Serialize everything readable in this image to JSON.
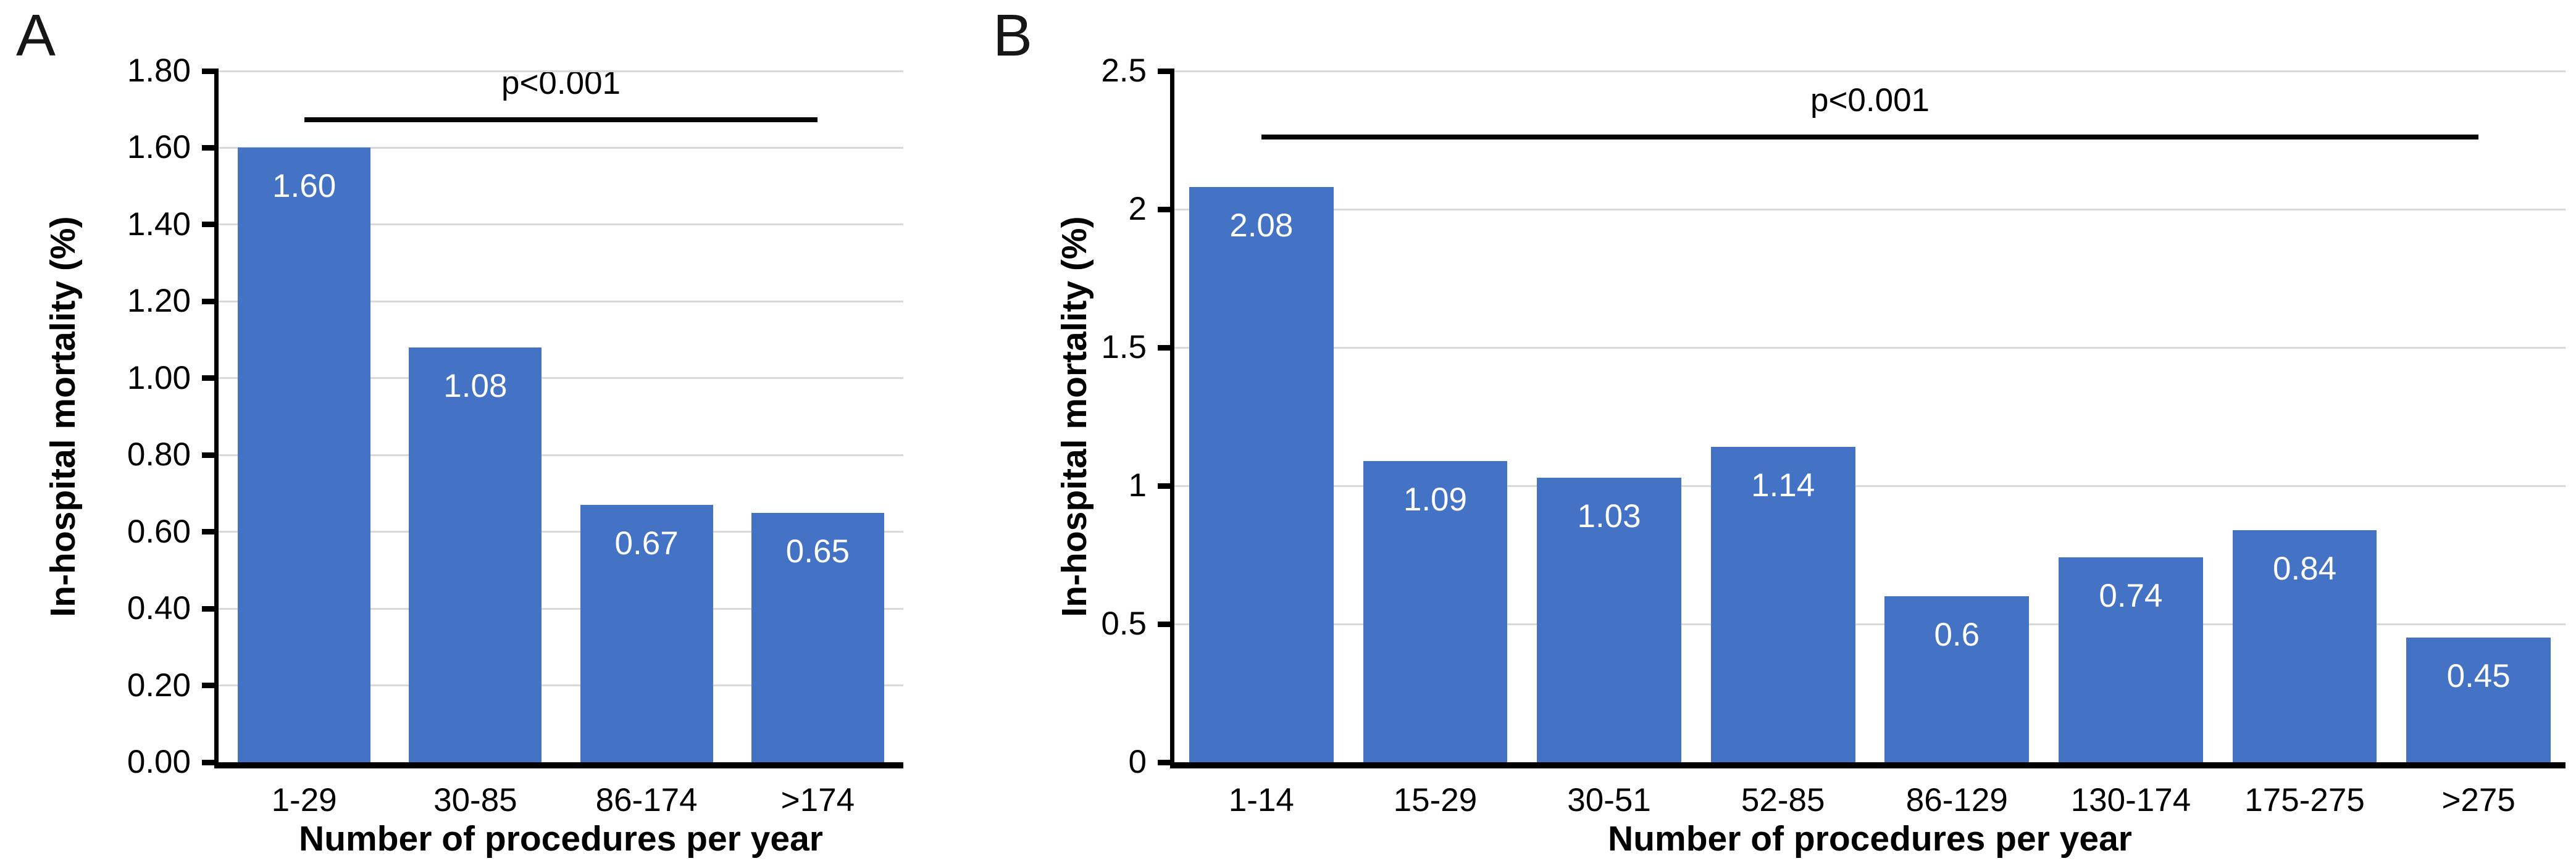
{
  "figure": {
    "description": "Two-panel bar chart of in-hospital mortality by annual procedure volume"
  },
  "chart_data": [
    {
      "type": "bar",
      "panel": "A",
      "categories": [
        "1-29",
        "30-85",
        "86-174",
        ">174"
      ],
      "values": [
        1.6,
        1.08,
        0.67,
        0.65
      ],
      "bar_value_labels": [
        "1.60",
        "1.08",
        "0.67",
        "0.65"
      ],
      "xlabel": "Number of procedures per year",
      "ylabel": "In-hospital mortality (%)",
      "ylim": [
        0,
        1.8
      ],
      "ytick_step": 0.2,
      "ytick_labels": [
        "0.00",
        "0.20",
        "0.40",
        "0.60",
        "0.80",
        "1.00",
        "1.20",
        "1.40",
        "1.60",
        "1.80"
      ],
      "grid": true,
      "legend": "none",
      "annotation": "p<0.001",
      "sig_line": {
        "y_value": 1.68,
        "from_frac": 0.125,
        "to_frac": 0.875
      },
      "bar_color": "#4472C4",
      "gridline_color": "#d9d9d9"
    },
    {
      "type": "bar",
      "panel": "B",
      "categories": [
        "1-14",
        "15-29",
        "30-51",
        "52-85",
        "86-129",
        "130-174",
        "175-275",
        ">275"
      ],
      "values": [
        2.08,
        1.09,
        1.03,
        1.14,
        0.6,
        0.74,
        0.84,
        0.45
      ],
      "bar_value_labels": [
        "2.08",
        "1.09",
        "1.03",
        "1.14",
        "0.6",
        "0.74",
        "0.84",
        "0.45"
      ],
      "xlabel": "Number of procedures per year",
      "ylabel": "In-hospital mortality (%)",
      "ylim": [
        0,
        2.5
      ],
      "ytick_step": 0.5,
      "ytick_labels": [
        "0",
        "0.5",
        "1",
        "1.5",
        "2",
        "2.5"
      ],
      "grid": true,
      "legend": "none",
      "annotation": "p<0.001",
      "sig_line": {
        "y_value": 2.27,
        "from_frac": 0.0625,
        "to_frac": 0.9375
      },
      "bar_color": "#4472C4",
      "gridline_color": "#d9d9d9"
    }
  ]
}
